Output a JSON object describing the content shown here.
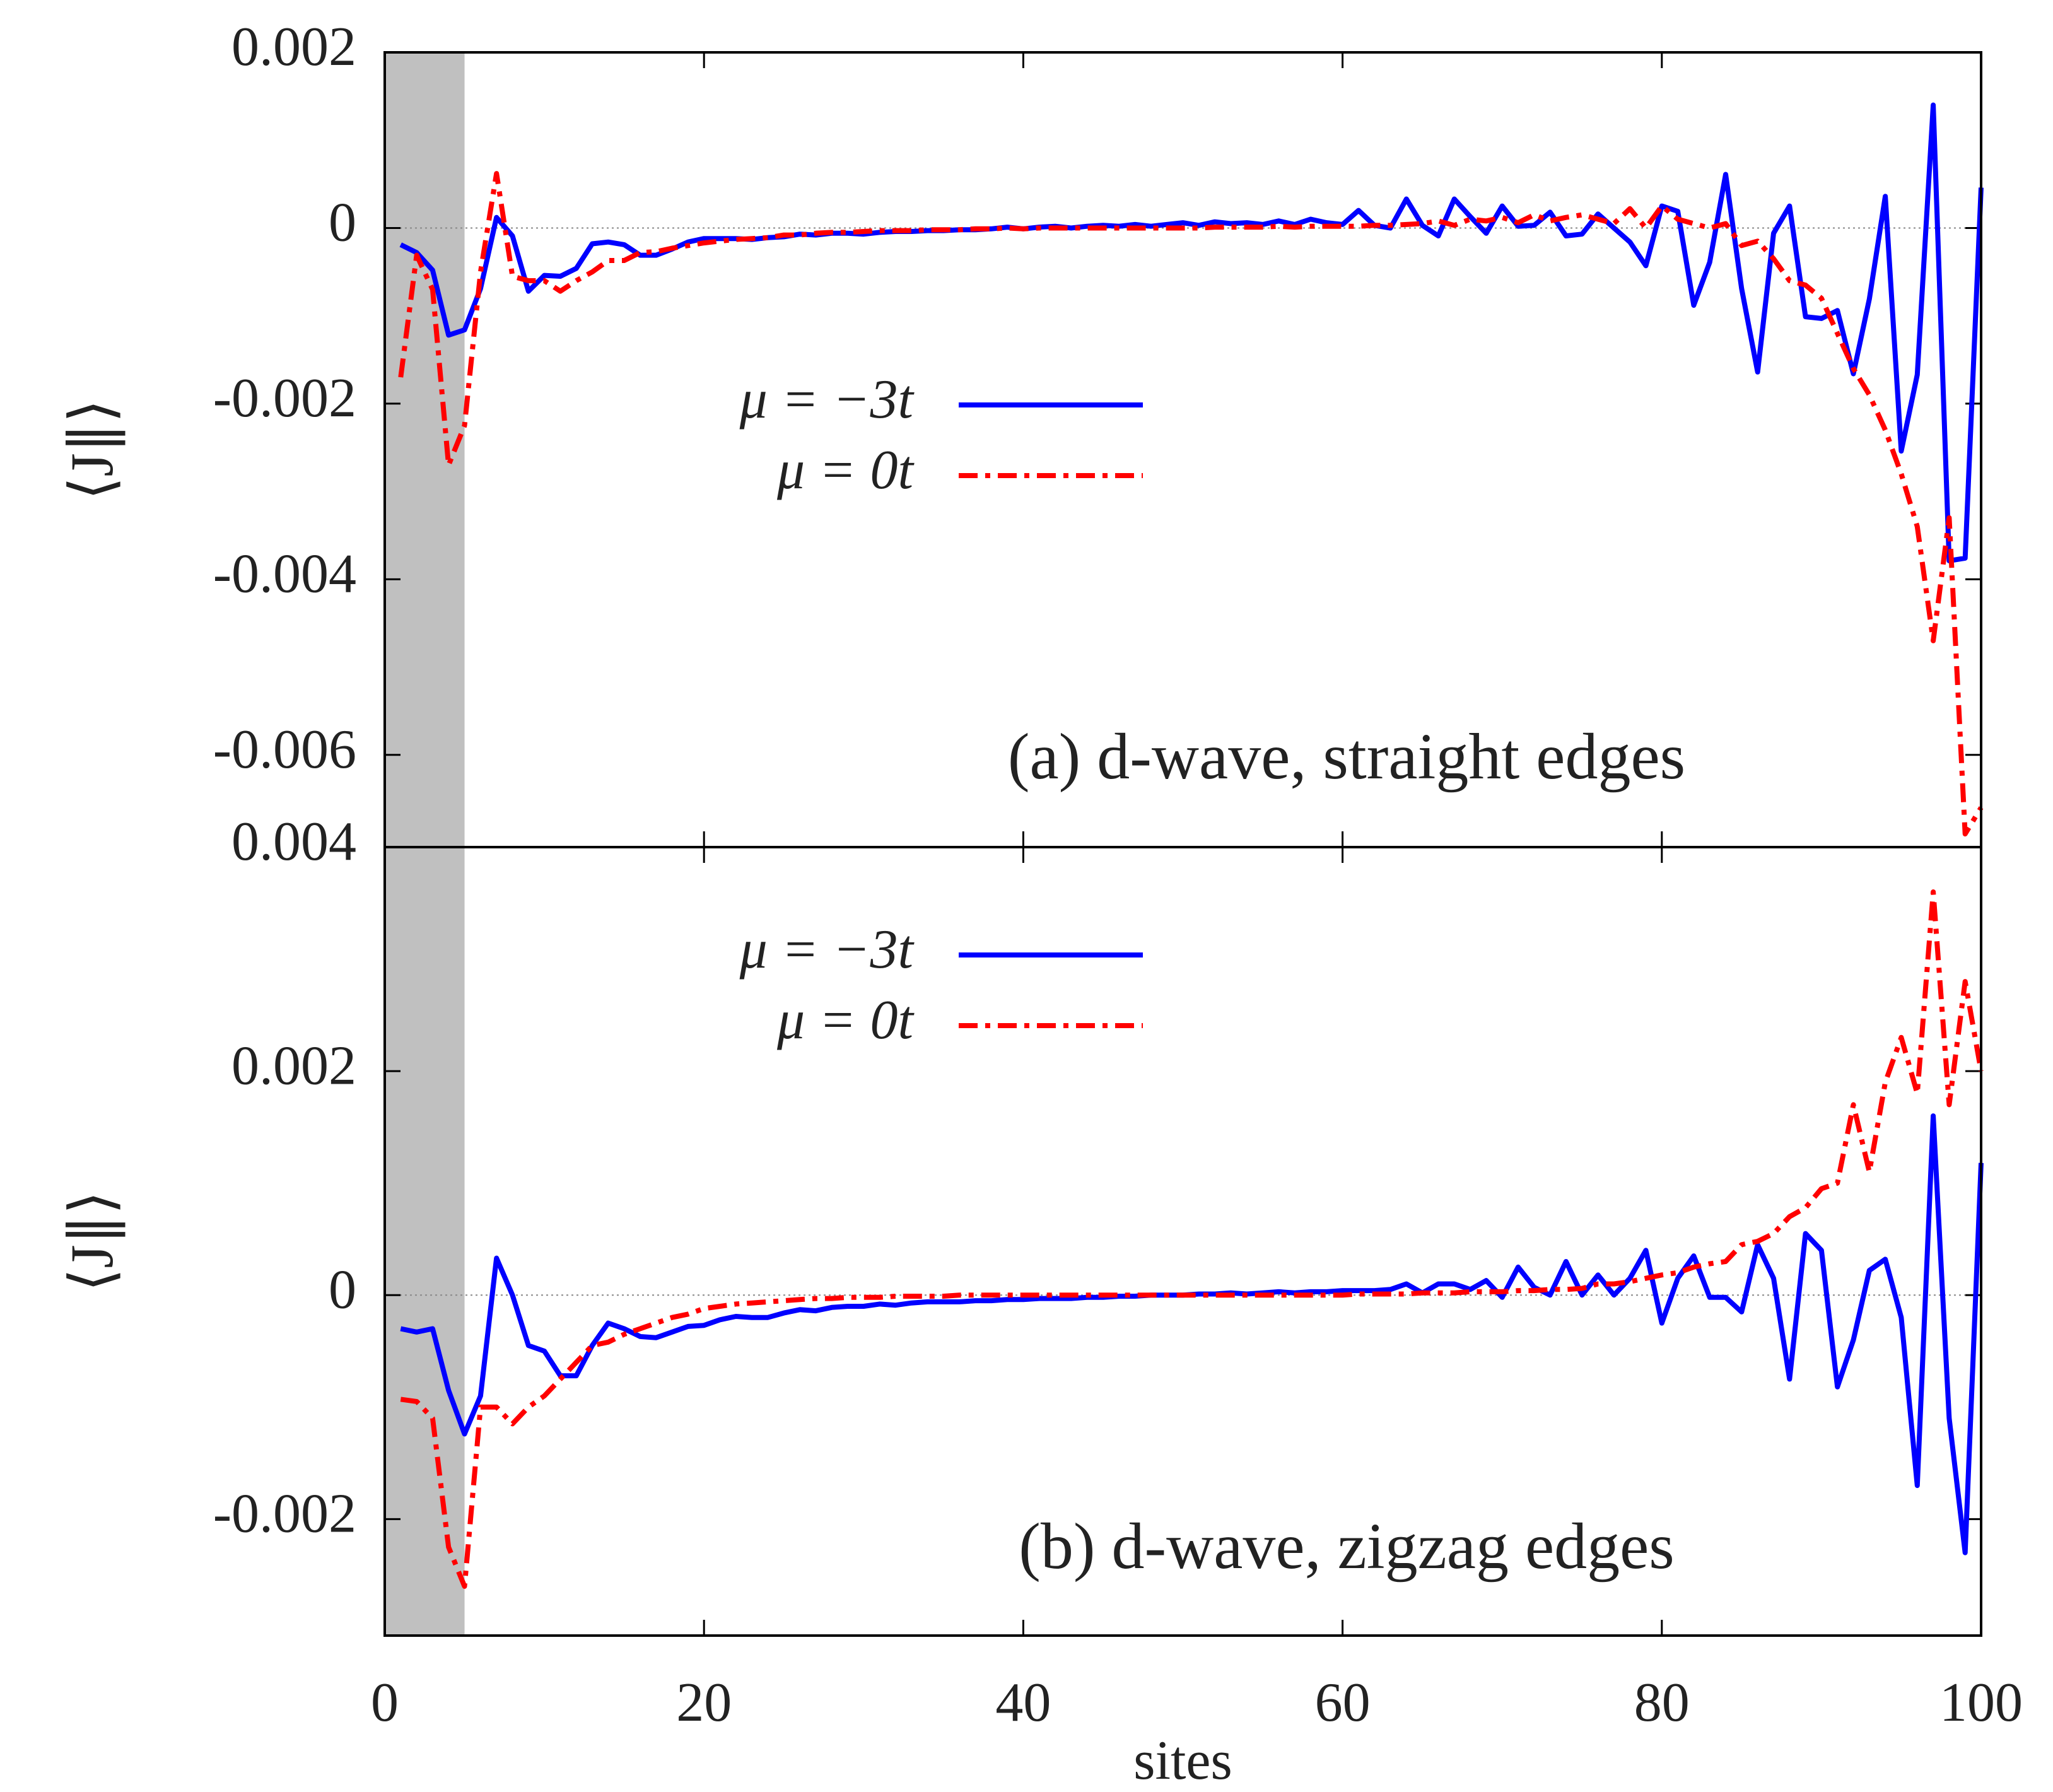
{
  "chart_data": [
    {
      "type": "line",
      "annotation": "(a) d-wave, straight edges",
      "y_label": "⟨J∥⟩",
      "xlim": [
        0,
        100
      ],
      "xticks": [
        0,
        20,
        40,
        60,
        80,
        100
      ],
      "show_xtick_labels": false,
      "ylim": [
        -0.00705,
        0.002
      ],
      "yticks": [
        0.002,
        0,
        -0.002,
        -0.004,
        -0.006
      ],
      "shaded_region": [
        0,
        5
      ],
      "zero_line": true,
      "legend": "upper center",
      "x": [
        1,
        2,
        3,
        4,
        5,
        6,
        7,
        8,
        9,
        10,
        11,
        12,
        13,
        14,
        15,
        16,
        17,
        18,
        19,
        20,
        21,
        22,
        23,
        24,
        25,
        26,
        27,
        28,
        29,
        30,
        31,
        32,
        33,
        34,
        35,
        36,
        37,
        38,
        39,
        40,
        41,
        42,
        43,
        44,
        45,
        46,
        47,
        48,
        49,
        50,
        51,
        52,
        53,
        54,
        55,
        56,
        57,
        58,
        59,
        60,
        61,
        62,
        63,
        64,
        65,
        66,
        67,
        68,
        69,
        70,
        71,
        72,
        73,
        74,
        75,
        76,
        77,
        78,
        79,
        80,
        81,
        82,
        83,
        84,
        85,
        86,
        87,
        88,
        89,
        90,
        91,
        92,
        93,
        94,
        95,
        96,
        97,
        98,
        99,
        100
      ],
      "series": [
        {
          "name": "μ = −3t",
          "color": "#0000ff",
          "style": "solid",
          "values": [
            -0.00019,
            -0.00028,
            -0.00048,
            -0.00122,
            -0.00116,
            -0.00069,
            0.00012,
            -9e-05,
            -0.00072,
            -0.00054,
            -0.00055,
            -0.00046,
            -0.00018,
            -0.00016,
            -0.00019,
            -0.00031,
            -0.00031,
            -0.00024,
            -0.00016,
            -0.00012,
            -0.00012,
            -0.00012,
            -0.00013,
            -0.00011,
            -0.0001,
            -7e-05,
            -8e-05,
            -6e-05,
            -6e-05,
            -7e-05,
            -5e-05,
            -4e-05,
            -4e-05,
            -3e-05,
            -3e-05,
            -2e-05,
            -2e-05,
            -1e-05,
            1e-05,
            -1e-05,
            1e-05,
            2e-05,
            0,
            2e-05,
            3e-05,
            2e-05,
            4e-05,
            2e-05,
            4e-05,
            6e-05,
            3e-05,
            7e-05,
            5e-05,
            6e-05,
            4e-05,
            8e-05,
            4e-05,
            0.0001,
            6e-05,
            4e-05,
            0.0002,
            3e-05,
            0,
            0.00033,
            3e-05,
            -9e-05,
            0.00033,
            0.00013,
            -6e-05,
            0.00025,
            2e-05,
            3e-05,
            0.00018,
            -9e-05,
            -7e-05,
            0.00016,
            0,
            -0.00016,
            -0.00043,
            0.00025,
            0.00019,
            -0.00088,
            -0.00039,
            0.00061,
            -0.00069,
            -0.00164,
            -6e-05,
            0.00025,
            -0.00101,
            -0.00103,
            -0.00094,
            -0.00166,
            -0.00081,
            0.00036,
            -0.00254,
            -0.00167,
            0.0014,
            -0.00379,
            -0.00376,
            0.00046
          ]
        },
        {
          "name": "μ = 0t",
          "color": "#ff0000",
          "style": "dashdot",
          "values": [
            -0.0017,
            -0.00031,
            -0.0007,
            -0.0027,
            -0.00225,
            -0.0005,
            0.00062,
            -0.00055,
            -0.0006,
            -0.0006,
            -0.00072,
            -0.0006,
            -0.0005,
            -0.00037,
            -0.00037,
            -0.00028,
            -0.00027,
            -0.00023,
            -0.0002,
            -0.00017,
            -0.00015,
            -0.00013,
            -0.00012,
            -0.00011,
            -8e-05,
            -8e-05,
            -6e-05,
            -5e-05,
            -5e-05,
            -4e-05,
            -3e-05,
            -3e-05,
            -3e-05,
            -2e-05,
            -2e-05,
            -2e-05,
            -1e-05,
            -1e-05,
            0,
            -1e-05,
            0,
            0,
            0,
            0,
            0,
            0,
            0,
            0,
            0,
            0,
            0,
            1e-05,
            1e-05,
            1e-05,
            1e-05,
            2e-05,
            1e-05,
            2e-05,
            2e-05,
            2e-05,
            2e-05,
            3e-05,
            3e-05,
            4e-05,
            5e-05,
            8e-05,
            3e-05,
            0.0001,
            8e-05,
            0.00012,
            6e-05,
            0.00015,
            8e-05,
            0.00012,
            0.00015,
            0.0001,
            5e-05,
            0.00022,
            0,
            0.00025,
            0.0001,
            5e-05,
            0,
            5e-05,
            -0.0002,
            -0.00015,
            -0.00035,
            -0.0006,
            -0.00065,
            -0.0008,
            -0.0012,
            -0.0016,
            -0.0019,
            -0.0023,
            -0.0028,
            -0.0034,
            -0.0047,
            -0.0033,
            -0.0069,
            -0.0066
          ]
        }
      ]
    },
    {
      "type": "line",
      "annotation": "(b) d-wave, zigzag edges",
      "y_label": "⟨J∥⟩",
      "x_label": "sites",
      "xlim": [
        0,
        100
      ],
      "xticks": [
        0,
        20,
        40,
        60,
        80,
        100
      ],
      "show_xtick_labels": true,
      "ylim": [
        -0.00304,
        0.004
      ],
      "yticks": [
        0.004,
        0.002,
        0,
        -0.002
      ],
      "shaded_region": [
        0,
        5
      ],
      "zero_line": true,
      "legend": "upper center",
      "x": [
        1,
        2,
        3,
        4,
        5,
        6,
        7,
        8,
        9,
        10,
        11,
        12,
        13,
        14,
        15,
        16,
        17,
        18,
        19,
        20,
        21,
        22,
        23,
        24,
        25,
        26,
        27,
        28,
        29,
        30,
        31,
        32,
        33,
        34,
        35,
        36,
        37,
        38,
        39,
        40,
        41,
        42,
        43,
        44,
        45,
        46,
        47,
        48,
        49,
        50,
        51,
        52,
        53,
        54,
        55,
        56,
        57,
        58,
        59,
        60,
        61,
        62,
        63,
        64,
        65,
        66,
        67,
        68,
        69,
        70,
        71,
        72,
        73,
        74,
        75,
        76,
        77,
        78,
        79,
        80,
        81,
        82,
        83,
        84,
        85,
        86,
        87,
        88,
        89,
        90,
        91,
        92,
        93,
        94,
        95,
        96,
        97,
        98,
        99,
        100
      ],
      "series": [
        {
          "name": "μ = −3t",
          "color": "#0000ff",
          "style": "solid",
          "values": [
            -0.0003,
            -0.00033,
            -0.0003,
            -0.00085,
            -0.00124,
            -0.0009,
            0.00033,
            0,
            -0.00045,
            -0.0005,
            -0.00072,
            -0.00072,
            -0.00045,
            -0.00025,
            -0.0003,
            -0.00037,
            -0.00038,
            -0.00033,
            -0.00028,
            -0.00027,
            -0.00022,
            -0.00019,
            -0.0002,
            -0.0002,
            -0.00016,
            -0.00013,
            -0.00014,
            -0.00011,
            -0.0001,
            -0.0001,
            -8e-05,
            -9e-05,
            -7e-05,
            -6e-05,
            -6e-05,
            -6e-05,
            -5e-05,
            -5e-05,
            -4e-05,
            -4e-05,
            -3e-05,
            -3e-05,
            -3e-05,
            -2e-05,
            -2e-05,
            -1e-05,
            -1e-05,
            0,
            0,
            0,
            1e-05,
            1e-05,
            2e-05,
            1e-05,
            2e-05,
            3e-05,
            2e-05,
            3e-05,
            3e-05,
            4e-05,
            4e-05,
            4e-05,
            5e-05,
            0.0001,
            2e-05,
            0.0001,
            0.0001,
            5e-05,
            0.00013,
            -2e-05,
            0.00025,
            7e-05,
            0,
            0.0003,
            0,
            0.00018,
            0,
            0.00015,
            0.0004,
            -0.00025,
            0.00015,
            0.00035,
            -2e-05,
            -2e-05,
            -0.00015,
            0.00045,
            0.00015,
            -0.00075,
            0.00055,
            0.0004,
            -0.00082,
            -0.0004,
            0.00022,
            0.00032,
            -0.0002,
            -0.0017,
            0.0016,
            -0.0011,
            -0.0023,
            0.00118
          ]
        },
        {
          "name": "μ = 0t",
          "color": "#ff0000",
          "style": "dashdot",
          "values": [
            -0.00093,
            -0.00095,
            -0.0011,
            -0.00225,
            -0.0026,
            -0.001,
            -0.001,
            -0.00115,
            -0.001,
            -0.0009,
            -0.00075,
            -0.0006,
            -0.00045,
            -0.00042,
            -0.00035,
            -0.0003,
            -0.00025,
            -0.0002,
            -0.00017,
            -0.00012,
            -0.0001,
            -8e-05,
            -7e-05,
            -6e-05,
            -5e-05,
            -4e-05,
            -3e-05,
            -3e-05,
            -2e-05,
            -2e-05,
            -2e-05,
            -1e-05,
            -1e-05,
            -1e-05,
            -1e-05,
            0,
            0,
            0,
            0,
            0,
            0,
            0,
            0,
            0,
            0,
            0,
            0,
            0,
            0,
            0,
            0,
            0,
            0,
            0,
            0,
            0,
            0,
            0,
            0,
            0,
            1e-05,
            1e-05,
            1e-05,
            1e-05,
            2e-05,
            2e-05,
            2e-05,
            3e-05,
            3e-05,
            3e-05,
            4e-05,
            4e-05,
            5e-05,
            5e-05,
            6e-05,
            0.0001,
            0.0001,
            0.00012,
            0.00015,
            0.00018,
            0.0002,
            0.00025,
            0.00028,
            0.0003,
            0.00045,
            0.00048,
            0.00055,
            0.0007,
            0.00078,
            0.00095,
            0.001,
            0.0017,
            0.0011,
            0.0019,
            0.0023,
            0.0018,
            0.0036,
            0.0017,
            0.0028,
            0.002
          ]
        }
      ]
    }
  ]
}
